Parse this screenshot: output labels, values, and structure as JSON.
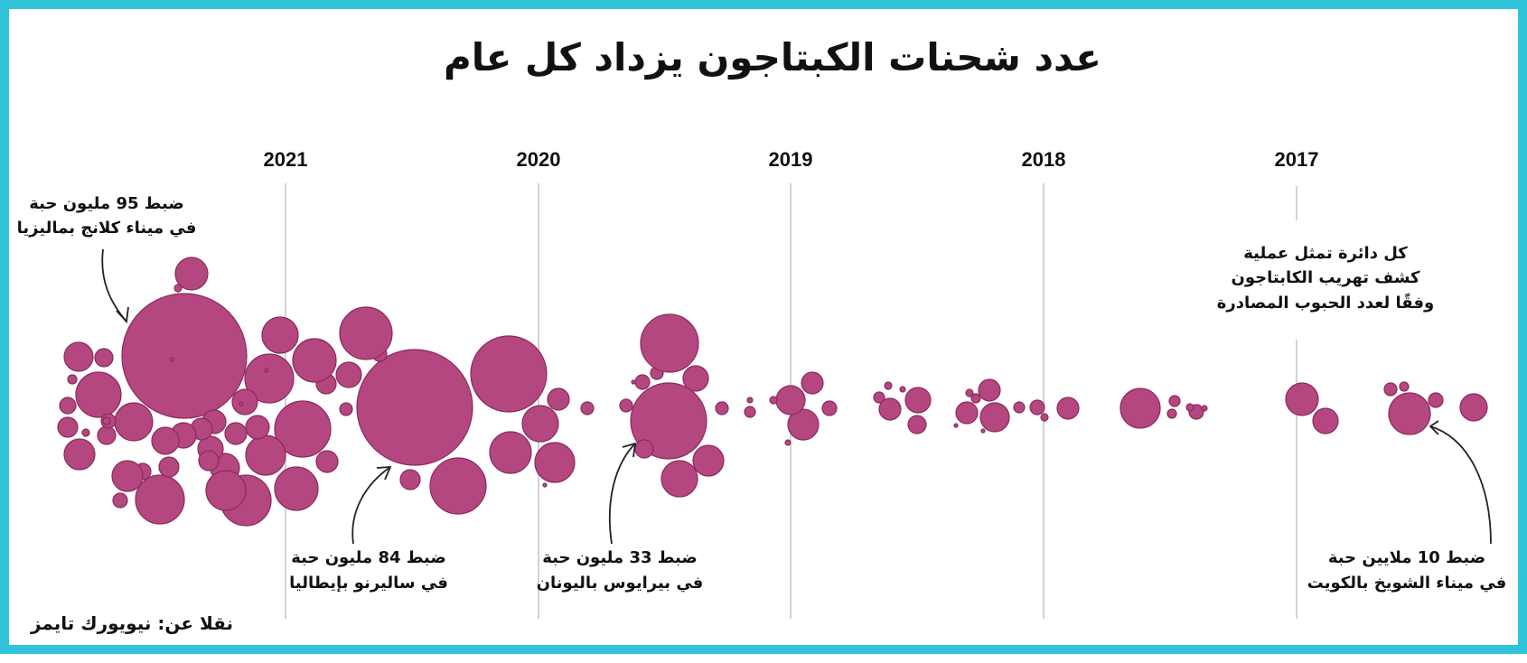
{
  "colors": {
    "border": "#2fc4d8",
    "bubble": "#b4477f",
    "bubble_stroke": "#8a2a5c",
    "grid": "#c4c4c4",
    "text": "#111111"
  },
  "chart_data": {
    "type": "bubble-timeline",
    "title": "عدد شحنات الكبتاجون يزداد كل عام",
    "years": [
      "2017",
      "2018",
      "2019",
      "2020",
      "2021"
    ],
    "size_encoding": "عدد الحبوب المصادرة",
    "highlighted_seizures": [
      {
        "year": "2017",
        "pills_million": 10,
        "line1": "ضبط 10 ملايين حبة",
        "line2": "في ميناء الشويخ بالكويت"
      },
      {
        "year": "2020",
        "pills_million": 33,
        "line1": "ضبط 33 مليون حبة",
        "line2": "في بيرايوس باليونان"
      },
      {
        "year": "2020",
        "pills_million": 84,
        "line1": "ضبط 84 مليون حبة",
        "line2": "في ساليرنو بإيطاليا"
      },
      {
        "year": "2021",
        "pills_million": 95,
        "line1": "ضبط 95 مليون حبة",
        "line2": "في ميناء كلانج بماليزيا"
      }
    ],
    "legend": [
      "كل دائرة تمثل عملية",
      "كشف تهريب الكابتاجون",
      "وفقًا لعدد الحبوب المصادرة"
    ],
    "source": "نقلا عن: نيويورك تايمز"
  }
}
